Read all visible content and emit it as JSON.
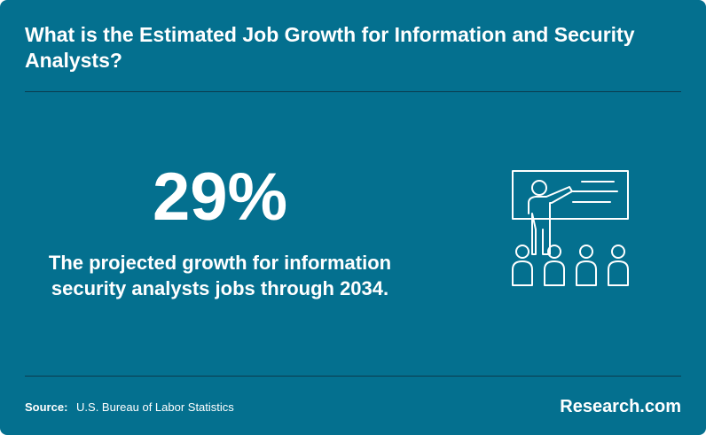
{
  "header": {
    "title": "What is the Estimated Job Growth for Information and Security Analysts?"
  },
  "stat": {
    "value": "29%",
    "description": "The projected growth for information security analysts jobs through 2034."
  },
  "illustration": {
    "icon": "presentation-audience-icon"
  },
  "footer": {
    "source_label": "Source:",
    "source_text": "U.S. Bureau of Labor Statistics",
    "brand": "Research.com"
  },
  "colors": {
    "background": "#04708f",
    "text": "#ffffff",
    "divider": "#0b3b4d"
  }
}
